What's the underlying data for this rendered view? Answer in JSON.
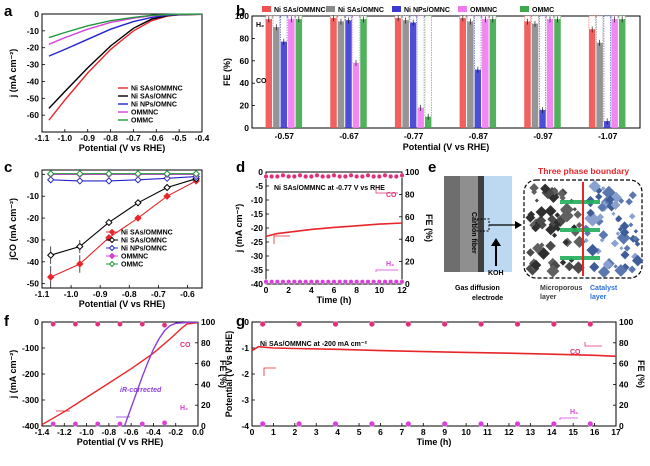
{
  "panels": {
    "a": {
      "label": "a"
    },
    "b": {
      "label": "b"
    },
    "c": {
      "label": "c"
    },
    "d": {
      "label": "d"
    },
    "e": {
      "label": "e"
    },
    "f": {
      "label": "f"
    },
    "g": {
      "label": "g"
    }
  },
  "chart_data": [
    {
      "id": "a",
      "type": "line",
      "xlabel": "Potential (V vs RHE)",
      "ylabel": "j (mA cm⁻²)",
      "xlim": [
        -1.1,
        -0.4
      ],
      "ylim": [
        -70,
        0
      ],
      "xticks": [
        "-1.1",
        "-1.0",
        "-0.9",
        "-0.8",
        "-0.7",
        "-0.6",
        "-0.5",
        "-0.4"
      ],
      "yticks": [
        "0",
        "-10",
        "-20",
        "-30",
        "-40",
        "-50",
        "-60"
      ],
      "series": [
        {
          "name": "Ni SAs/OMMNC",
          "color": "#e8262a",
          "x": [
            -1.07,
            -1.0,
            -0.9,
            -0.8,
            -0.7,
            -0.62,
            -0.55,
            -0.5,
            -0.4
          ],
          "y": [
            -63,
            -51,
            -35,
            -21,
            -10,
            -4,
            -1.2,
            -0.5,
            -0.2
          ]
        },
        {
          "name": "Ni SAs/OMNC",
          "color": "#000000",
          "x": [
            -1.07,
            -1.0,
            -0.9,
            -0.8,
            -0.7,
            -0.62,
            -0.55,
            -0.5,
            -0.4
          ],
          "y": [
            -56,
            -46,
            -32,
            -19,
            -8.5,
            -3,
            -1,
            -0.4,
            -0.2
          ]
        },
        {
          "name": "Ni NPs/OMNC",
          "color": "#2424cc",
          "x": [
            -1.07,
            -1.0,
            -0.9,
            -0.8,
            -0.7,
            -0.62,
            -0.55,
            -0.5,
            -0.4
          ],
          "y": [
            -25,
            -21,
            -15,
            -9,
            -4.5,
            -2,
            -0.8,
            -0.3,
            -0.1
          ]
        },
        {
          "name": "OMMNC",
          "color": "#d93fd9",
          "x": [
            -1.07,
            -1.0,
            -0.9,
            -0.8,
            -0.7,
            -0.62,
            -0.55,
            -0.5,
            -0.4
          ],
          "y": [
            -18,
            -14,
            -9,
            -5,
            -2.5,
            -1,
            -0.4,
            -0.2,
            -0.1
          ]
        },
        {
          "name": "OMMC",
          "color": "#1f9a3a",
          "x": [
            -1.07,
            -1.0,
            -0.9,
            -0.8,
            -0.7,
            -0.62,
            -0.55,
            -0.5,
            -0.4
          ],
          "y": [
            -14,
            -11,
            -7,
            -4,
            -2,
            -0.8,
            -0.3,
            -0.1,
            -0.05
          ]
        }
      ]
    },
    {
      "id": "b",
      "type": "bar",
      "xlabel": "Potential (V vs RHE)",
      "ylabel": "FE (%)",
      "ylim": [
        0,
        100
      ],
      "yticks": [
        "0",
        "20",
        "40",
        "60",
        "80",
        "100"
      ],
      "categories": [
        "-0.57",
        "-0.67",
        "-0.77",
        "-0.87",
        "-0.97",
        "-1.07"
      ],
      "inner_labels": [
        "H₂",
        "CO"
      ],
      "series": [
        {
          "name": "Ni SAs/OMMNC",
          "color": "#f0504f",
          "co": [
            97,
            98,
            98,
            98,
            95,
            88
          ]
        },
        {
          "name": "Ni SAs/OMNC",
          "color": "#8a8a8a",
          "co": [
            90,
            95,
            96,
            95,
            93,
            76
          ]
        },
        {
          "name": "Ni NPs/OMNC",
          "color": "#3a3ad0",
          "co": [
            77,
            96,
            94,
            52,
            16,
            6
          ]
        },
        {
          "name": "OMMNC",
          "color": "#f07af0",
          "co": [
            97,
            58,
            18,
            97,
            97,
            97
          ]
        },
        {
          "name": "OMMC",
          "color": "#3ea84a",
          "co": [
            97,
            97,
            10,
            97,
            97,
            97
          ]
        }
      ]
    },
    {
      "id": "c",
      "type": "line",
      "xlabel": "Potential (V vs RHE)",
      "ylabel": "jCO (mA cm⁻²)",
      "xlim": [
        -1.1,
        -0.55
      ],
      "ylim": [
        -52,
        2
      ],
      "xticks": [
        "-1.1",
        "-1.0",
        "-0.9",
        "-0.8",
        "-0.7",
        "-0.6"
      ],
      "yticks": [
        "0",
        "-10",
        "-20",
        "-30",
        "-40",
        "-50"
      ],
      "series": [
        {
          "name": "Ni SAs/OMMNC",
          "color": "#e8262a",
          "marker": "diamond",
          "x": [
            -1.07,
            -0.97,
            -0.87,
            -0.77,
            -0.67,
            -0.57
          ],
          "y": [
            -47,
            -41,
            -29,
            -20,
            -10,
            -3
          ],
          "err": [
            5,
            4,
            1.5,
            1.5,
            1,
            0.5
          ]
        },
        {
          "name": "Ni SAs/OMNC",
          "color": "#000000",
          "marker": "diamond-open",
          "x": [
            -1.07,
            -0.97,
            -0.87,
            -0.77,
            -0.67,
            -0.57
          ],
          "y": [
            -37,
            -33,
            -22,
            -13,
            -6,
            -2
          ],
          "err": [
            4,
            3,
            1.5,
            1,
            0.8,
            0.4
          ]
        },
        {
          "name": "Ni NPs/OMNC",
          "color": "#2424cc",
          "marker": "diamond-open",
          "x": [
            -1.07,
            -0.97,
            -0.87,
            -0.77,
            -0.67,
            -0.57
          ],
          "y": [
            -2.5,
            -3,
            -3,
            -2.5,
            -1.8,
            -1
          ]
        },
        {
          "name": "OMMNC",
          "color": "#d93fd9",
          "marker": "diamond",
          "x": [
            -1.07,
            -0.97,
            -0.87,
            -0.77,
            -0.67,
            -0.57
          ],
          "y": [
            0,
            0,
            0,
            0,
            0,
            0
          ]
        },
        {
          "name": "OMMC",
          "color": "#1f9a3a",
          "marker": "diamond-open",
          "x": [
            -1.07,
            -0.97,
            -0.87,
            -0.77,
            -0.67,
            -0.57
          ],
          "y": [
            0.3,
            0.3,
            0.3,
            0.3,
            0.3,
            0.3
          ]
        }
      ]
    },
    {
      "id": "d",
      "type": "line",
      "annotation": "Ni SAs/OMMNC at -0.77 V vs RHE",
      "xlabel": "Time (h)",
      "ylabel": "j (mA cm⁻²)",
      "y2label": "FE (%)",
      "xlim": [
        0,
        12
      ],
      "ylim": [
        -40,
        0
      ],
      "y2lim": [
        0,
        100
      ],
      "xticks": [
        "0",
        "2",
        "4",
        "6",
        "8",
        "10",
        "12"
      ],
      "yticks": [
        "0",
        "-5",
        "-10",
        "-15",
        "-20",
        "-25",
        "-30",
        "-35",
        "-40"
      ],
      "y2ticks": [
        "0",
        "20",
        "40",
        "60",
        "80",
        "100"
      ],
      "labels": {
        "co": "CO",
        "h2": "H₂"
      },
      "series": [
        {
          "name": "current",
          "color": "#e8262a",
          "x": [
            0,
            1,
            2,
            4,
            6,
            8,
            10,
            12
          ],
          "y": [
            -23,
            -22,
            -21.5,
            -20.5,
            -19.8,
            -19.2,
            -18.6,
            -18.2
          ]
        },
        {
          "name": "CO",
          "color": "#e0307a",
          "x": [
            0,
            0.5,
            1,
            1.5,
            2,
            2.5,
            3,
            3.5,
            4,
            4.5,
            5,
            5.5,
            6,
            6.5,
            7,
            7.5,
            8,
            8.5,
            9,
            9.5,
            10,
            10.5,
            11,
            11.5,
            12
          ],
          "y": [
            96,
            96,
            96,
            97,
            96,
            96,
            97,
            96,
            96,
            97,
            96,
            96,
            97,
            96,
            96,
            97,
            96,
            96,
            97,
            96,
            96,
            97,
            96,
            96,
            97
          ]
        },
        {
          "name": "H₂",
          "color": "#d93fd9",
          "x": [
            0,
            0.5,
            1,
            1.5,
            2,
            2.5,
            3,
            3.5,
            4,
            4.5,
            5,
            5.5,
            6,
            6.5,
            7,
            7.5,
            8,
            8.5,
            9,
            9.5,
            10,
            10.5,
            11,
            11.5,
            12
          ],
          "y": [
            2,
            2,
            2,
            2,
            2,
            2,
            2,
            2,
            2,
            2,
            2,
            2,
            2,
            2,
            2,
            2,
            2,
            2,
            2,
            2,
            2,
            2,
            2,
            2,
            2
          ]
        }
      ]
    },
    {
      "id": "f",
      "type": "line",
      "xlabel": "Potential (V vs RHE)",
      "ylabel": "j (mA cm⁻²)",
      "y2label": "FE (%)",
      "xlim": [
        -1.4,
        0
      ],
      "ylim": [
        -400,
        0
      ],
      "y2lim": [
        0,
        100
      ],
      "xticks": [
        "-1.4",
        "-1.2",
        "-1.0",
        "-0.8",
        "-0.6",
        "-0.4",
        "-0.2",
        "0.0"
      ],
      "yticks": [
        "0",
        "-100",
        "-200",
        "-300",
        "-400"
      ],
      "y2ticks": [
        "0",
        "20",
        "40",
        "60",
        "80",
        "100"
      ],
      "labels": {
        "co": "CO",
        "h2": "H₂",
        "ir": "iR-corrected"
      },
      "series": [
        {
          "name": "raw",
          "color": "#e8262a",
          "x": [
            -1.4,
            -1.2,
            -1.0,
            -0.8,
            -0.6,
            -0.4,
            -0.25,
            -0.15,
            -0.1,
            0
          ],
          "y": [
            -395,
            -345,
            -290,
            -235,
            -180,
            -120,
            -65,
            -25,
            -8,
            -2
          ]
        },
        {
          "name": "iR-corrected",
          "color": "#8a3fd9",
          "x": [
            -0.66,
            -0.6,
            -0.55,
            -0.5,
            -0.45,
            -0.4,
            -0.35,
            -0.3,
            -0.25,
            -0.2,
            -0.1,
            0
          ],
          "y": [
            -400,
            -330,
            -270,
            -210,
            -155,
            -105,
            -65,
            -33,
            -14,
            -5,
            -2,
            -1
          ]
        },
        {
          "name": "CO",
          "color": "#e0307a",
          "x": [
            -1.3,
            -1.1,
            -0.9,
            -0.7,
            -0.5,
            -0.3
          ],
          "y": [
            98,
            98,
            98,
            98,
            98,
            97
          ]
        },
        {
          "name": "H₂",
          "color": "#d93fd9",
          "x": [
            -1.3,
            -1.1,
            -0.9,
            -0.7,
            -0.5,
            -0.3
          ],
          "y": [
            2,
            2,
            2,
            2,
            2,
            3
          ]
        }
      ]
    },
    {
      "id": "g",
      "type": "line",
      "annotation": "Ni SAs/OMMNC at -200 mA cm⁻²",
      "xlabel": "Time (h)",
      "ylabel": "Potential (V vs RHE)",
      "y2label": "FE (%)",
      "xlim": [
        0,
        17
      ],
      "ylim": [
        -4,
        0
      ],
      "y2lim": [
        0,
        100
      ],
      "xticks": [
        "0",
        "1",
        "2",
        "3",
        "4",
        "5",
        "6",
        "7",
        "8",
        "9",
        "10",
        "11",
        "12",
        "13",
        "14",
        "15",
        "16",
        "17"
      ],
      "yticks": [
        "0",
        "-1",
        "-2",
        "-3",
        "-4"
      ],
      "y2ticks": [
        "0",
        "20",
        "40",
        "60",
        "80",
        "100"
      ],
      "labels": {
        "co": "CO",
        "h2": "H₂"
      },
      "series": [
        {
          "name": "potential",
          "color": "#e8262a",
          "x": [
            0,
            0.3,
            1,
            2,
            4,
            6,
            8,
            10,
            12,
            14,
            16,
            17
          ],
          "y": [
            -1.1,
            -0.95,
            -1.0,
            -1.02,
            -1.05,
            -1.1,
            -1.14,
            -1.17,
            -1.2,
            -1.24,
            -1.28,
            -1.32
          ]
        },
        {
          "name": "CO",
          "color": "#e0307a",
          "x": [
            0.5,
            2.2,
            3.9,
            5.6,
            7.3,
            9.0,
            10.7,
            12.4,
            14.1,
            15.8
          ],
          "y": [
            98,
            98,
            98,
            98,
            98,
            98,
            98,
            98,
            98,
            98
          ]
        },
        {
          "name": "H₂",
          "color": "#d93fd9",
          "x": [
            0.5,
            2.2,
            3.9,
            5.6,
            7.3,
            9.0,
            10.7,
            12.4,
            14.1,
            15.8
          ],
          "y": [
            2,
            2,
            2,
            2,
            2,
            2,
            2,
            2,
            2,
            2
          ]
        }
      ]
    }
  ],
  "diagram_e": {
    "title": "Three phase boundary",
    "carbon_fiber": "Carbon fiber",
    "koh": "KOH",
    "gde": "Gas diffusion electrode",
    "microporous": "Microporous layer",
    "catalyst": "Catalyst layer",
    "colors": {
      "title": "#e8262a",
      "catalyst": "#2b6fd9",
      "microporous": "#3a3a3a"
    }
  }
}
